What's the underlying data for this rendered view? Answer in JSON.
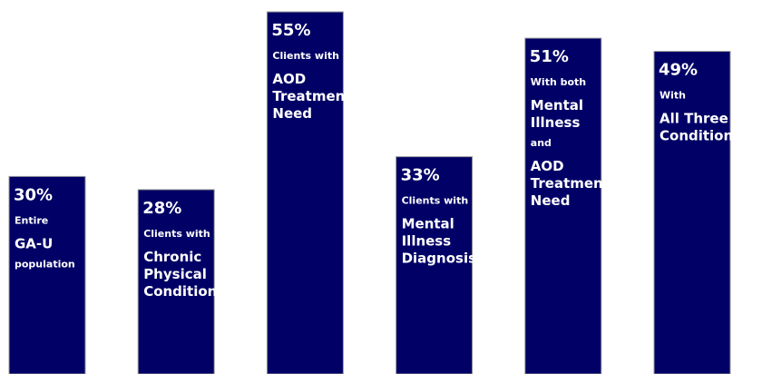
{
  "chart_data": {
    "type": "bar",
    "categories": [
      [
        [
          "Entire"
        ],
        [
          "GA-U"
        ],
        [
          "population"
        ]
      ],
      [
        [
          "Clients with"
        ],
        [
          "Chronic",
          "Physical",
          "Condition"
        ]
      ],
      [
        [
          "Clients with"
        ],
        [
          "AOD",
          "Treatment",
          "Need"
        ]
      ],
      [
        [
          "Clients with"
        ],
        [
          "Mental",
          "Illness",
          "Diagnosis"
        ]
      ],
      [
        [
          "With both"
        ],
        [
          "Mental",
          "Illness"
        ],
        [
          "and"
        ],
        [
          "AOD",
          "Treatment",
          "Need"
        ]
      ],
      [
        [
          "With"
        ],
        [
          "All Three",
          "Conditions"
        ]
      ]
    ],
    "values": [
      30,
      28,
      55,
      33,
      51,
      49
    ],
    "value_labels": [
      "30%",
      "28%",
      "55%",
      "33%",
      "51%",
      "49%"
    ],
    "color": "#000066",
    "ylim": [
      0,
      56.8
    ]
  }
}
